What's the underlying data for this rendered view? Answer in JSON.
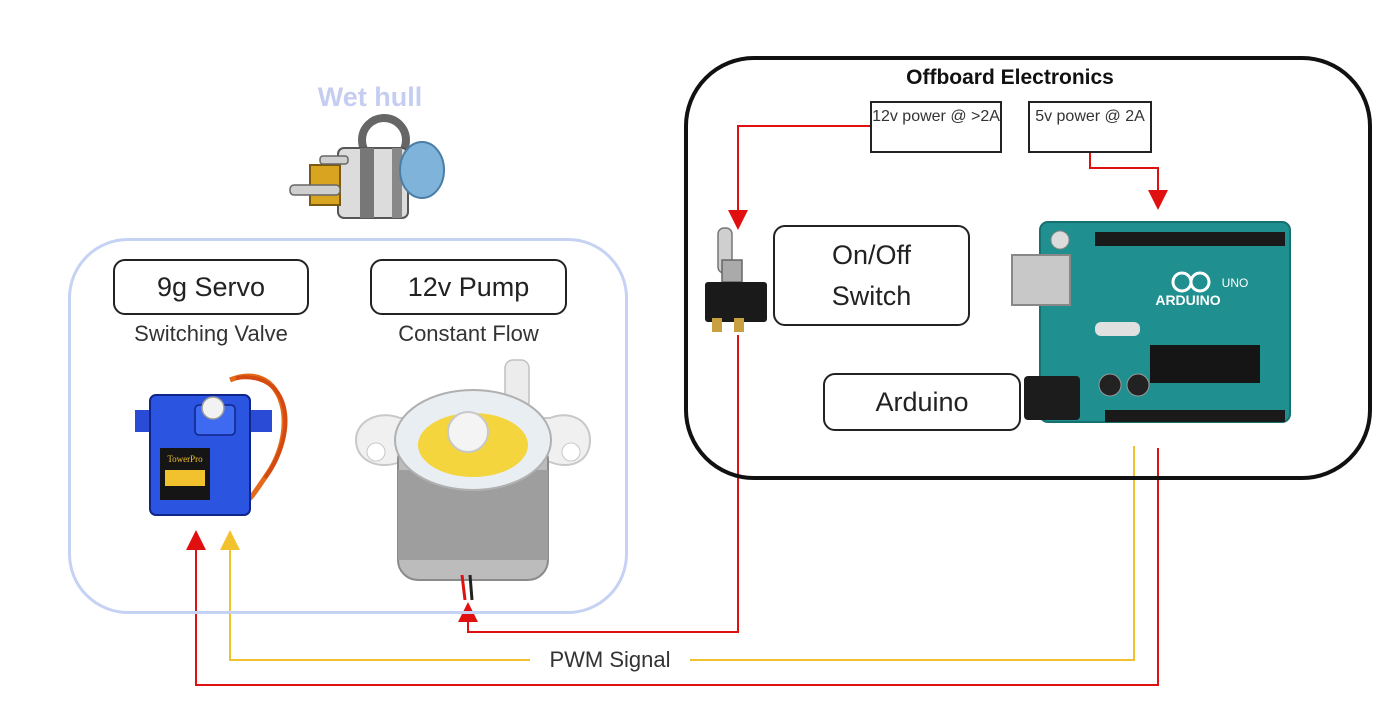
{
  "wet_hull": {
    "title": "Wet hull",
    "servo": {
      "label": "9g Servo",
      "caption": "Switching Valve"
    },
    "pump": {
      "label": "12v Pump",
      "caption": "Constant Flow"
    }
  },
  "offboard": {
    "title": "Offboard Electronics",
    "power_12v": "12v power @ >2A",
    "power_5v": "5v power @ 2A",
    "switch_label": "On/Off Switch",
    "arduino_label": "Arduino",
    "arduino_board_text": "ARDUINO",
    "arduino_uno_text": "UNO"
  },
  "signals": {
    "pwm_label": "PWM Signal"
  },
  "servo_brand": "TowerPro",
  "colors": {
    "power_wire": "#e01010",
    "signal_wire": "#f2c12e",
    "wet_hull_border": "#c6d2f4",
    "wet_hull_title": "#c5cdf0",
    "arduino_board": "#1f8f8f"
  }
}
